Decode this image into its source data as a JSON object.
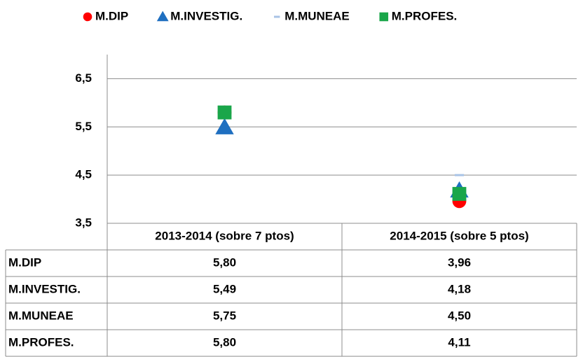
{
  "chart_data": {
    "type": "line",
    "categories": [
      "2013-2014 (sobre 7 ptos)",
      "2014-2015 (sobre 5 ptos)"
    ],
    "series": [
      {
        "name": "M.DIP",
        "color": "#ff0000",
        "marker": "circle",
        "values": [
          5.8,
          3.96
        ],
        "value_labels": [
          "5,80",
          "3,96"
        ]
      },
      {
        "name": "M.INVESTIG.",
        "color": "#1f6fc0",
        "marker": "triangle",
        "values": [
          5.49,
          4.18
        ],
        "value_labels": [
          "5,49",
          "4,18"
        ]
      },
      {
        "name": "M.MUNEAE",
        "color": "#a9c3e6",
        "marker": "dash",
        "values": [
          5.75,
          4.5
        ],
        "value_labels": [
          "5,75",
          "4,50"
        ]
      },
      {
        "name": "M.PROFES.",
        "color": "#1aa64a",
        "marker": "square",
        "values": [
          5.8,
          4.11
        ],
        "value_labels": [
          "5,80",
          "4,11"
        ]
      }
    ],
    "ylim": [
      3.5,
      7
    ],
    "yticks": [
      {
        "value": 3.5,
        "label": "3,5"
      },
      {
        "value": 4.5,
        "label": "4,5"
      },
      {
        "value": 5.5,
        "label": "5,5"
      },
      {
        "value": 6.5,
        "label": "6,5"
      }
    ],
    "grid": true,
    "legend": "top",
    "data_table": true
  }
}
